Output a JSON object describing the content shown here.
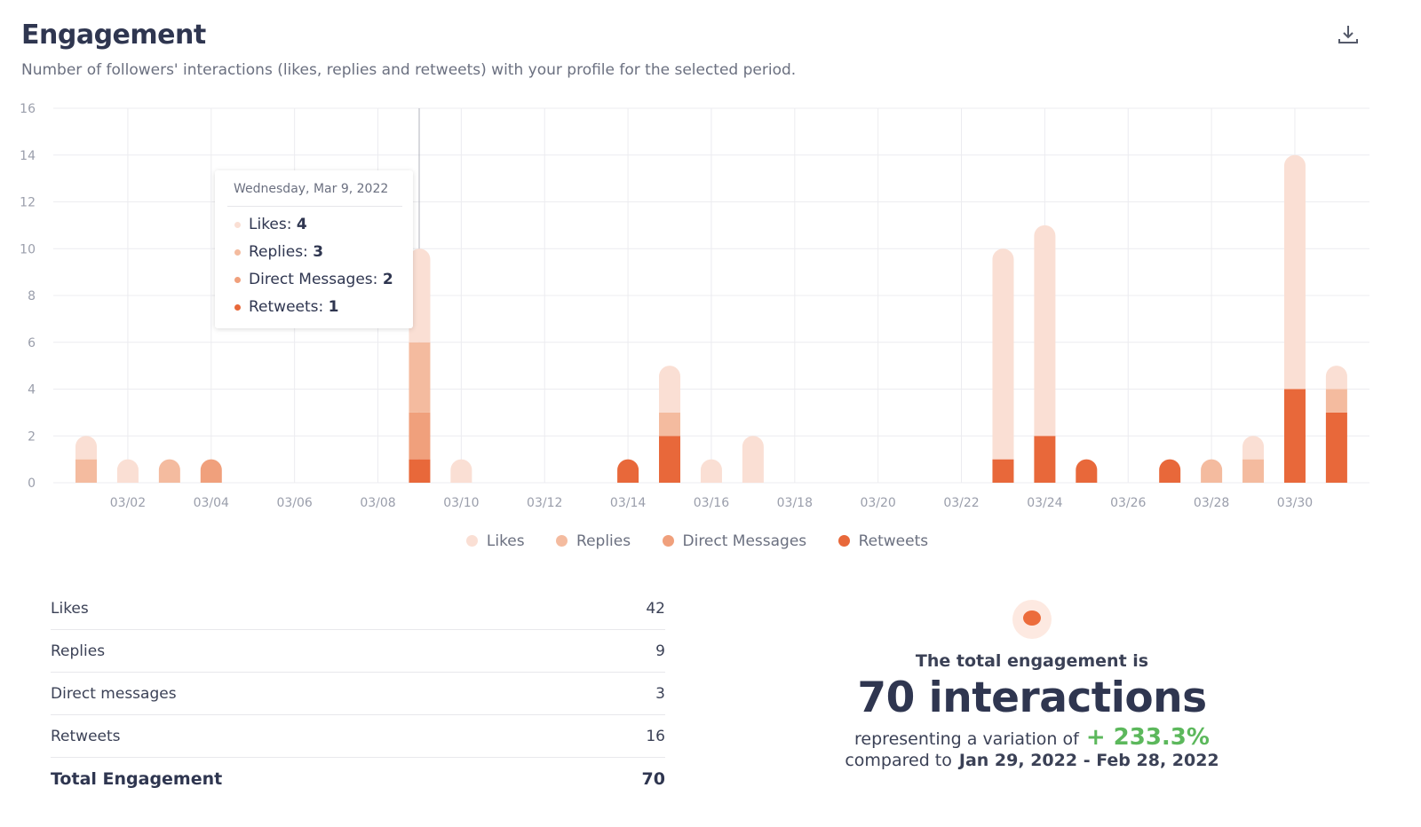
{
  "header": {
    "title": "Engagement",
    "subtitle": "Number of followers' interactions (likes, replies and retweets) with your profile for the selected period.",
    "download_icon": "download-icon"
  },
  "colors": {
    "Likes": "#fadfd4",
    "Replies": "#f4bb9f",
    "Direct Messages": "#f0a07c",
    "Retweets": "#e8683a",
    "positive": "#5cb85c"
  },
  "chart_data": {
    "type": "bar",
    "stacked": true,
    "grid": true,
    "legend_position": "bottom",
    "ylim": [
      0,
      16
    ],
    "yticks": [
      0,
      2,
      4,
      6,
      8,
      10,
      12,
      14,
      16
    ],
    "categories": [
      "03/01",
      "03/02",
      "03/03",
      "03/04",
      "03/05",
      "03/06",
      "03/07",
      "03/08",
      "03/09",
      "03/10",
      "03/11",
      "03/12",
      "03/13",
      "03/14",
      "03/15",
      "03/16",
      "03/17",
      "03/18",
      "03/19",
      "03/20",
      "03/21",
      "03/22",
      "03/23",
      "03/24",
      "03/25",
      "03/26",
      "03/27",
      "03/28",
      "03/29",
      "03/30",
      "03/31"
    ],
    "xtick_labels": [
      "03/02",
      "03/04",
      "03/06",
      "03/08",
      "03/10",
      "03/12",
      "03/14",
      "03/16",
      "03/18",
      "03/20",
      "03/22",
      "03/24",
      "03/26",
      "03/28",
      "03/30"
    ],
    "series": [
      {
        "name": "Retweets",
        "values": [
          0,
          0,
          0,
          0,
          0,
          0,
          0,
          0,
          1,
          0,
          0,
          0,
          0,
          1,
          2,
          0,
          0,
          0,
          0,
          0,
          0,
          0,
          1,
          2,
          1,
          0,
          1,
          0,
          0,
          4,
          3
        ]
      },
      {
        "name": "Direct Messages",
        "values": [
          0,
          0,
          0,
          1,
          0,
          0,
          0,
          0,
          2,
          0,
          0,
          0,
          0,
          0,
          0,
          0,
          0,
          0,
          0,
          0,
          0,
          0,
          0,
          0,
          0,
          0,
          0,
          0,
          0,
          0,
          0
        ]
      },
      {
        "name": "Replies",
        "values": [
          1,
          0,
          1,
          0,
          0,
          0,
          0,
          0,
          3,
          0,
          0,
          0,
          0,
          0,
          1,
          0,
          0,
          0,
          0,
          0,
          0,
          0,
          0,
          0,
          0,
          0,
          0,
          1,
          1,
          0,
          1
        ]
      },
      {
        "name": "Likes",
        "values": [
          1,
          1,
          0,
          0,
          0,
          0,
          0,
          0,
          4,
          1,
          0,
          0,
          0,
          0,
          2,
          1,
          2,
          0,
          0,
          0,
          0,
          0,
          9,
          9,
          0,
          0,
          0,
          0,
          1,
          10,
          1
        ]
      }
    ],
    "legend": [
      "Likes",
      "Replies",
      "Direct Messages",
      "Retweets"
    ],
    "tooltip": {
      "date": "Wednesday, Mar 9, 2022",
      "rows": [
        {
          "label": "Likes: ",
          "value": "4"
        },
        {
          "label": "Replies: ",
          "value": "3"
        },
        {
          "label": "Direct Messages: ",
          "value": "2"
        },
        {
          "label": "Retweets: ",
          "value": "1"
        }
      ]
    }
  },
  "table": [
    {
      "label": "Likes",
      "value": "42"
    },
    {
      "label": "Replies",
      "value": "9"
    },
    {
      "label": "Direct messages",
      "value": "3"
    },
    {
      "label": "Retweets",
      "value": "16"
    },
    {
      "label": "Total Engagement",
      "value": "70"
    }
  ],
  "summary": {
    "icon": "chat-chart-icon",
    "line1": "The total engagement is",
    "total": "70 interactions",
    "variation_prefix": "representing a variation of",
    "variation": "+ 233.3%",
    "compare_prefix": "compared to",
    "compare_period": "Jan 29, 2022 - Feb 28, 2022"
  }
}
